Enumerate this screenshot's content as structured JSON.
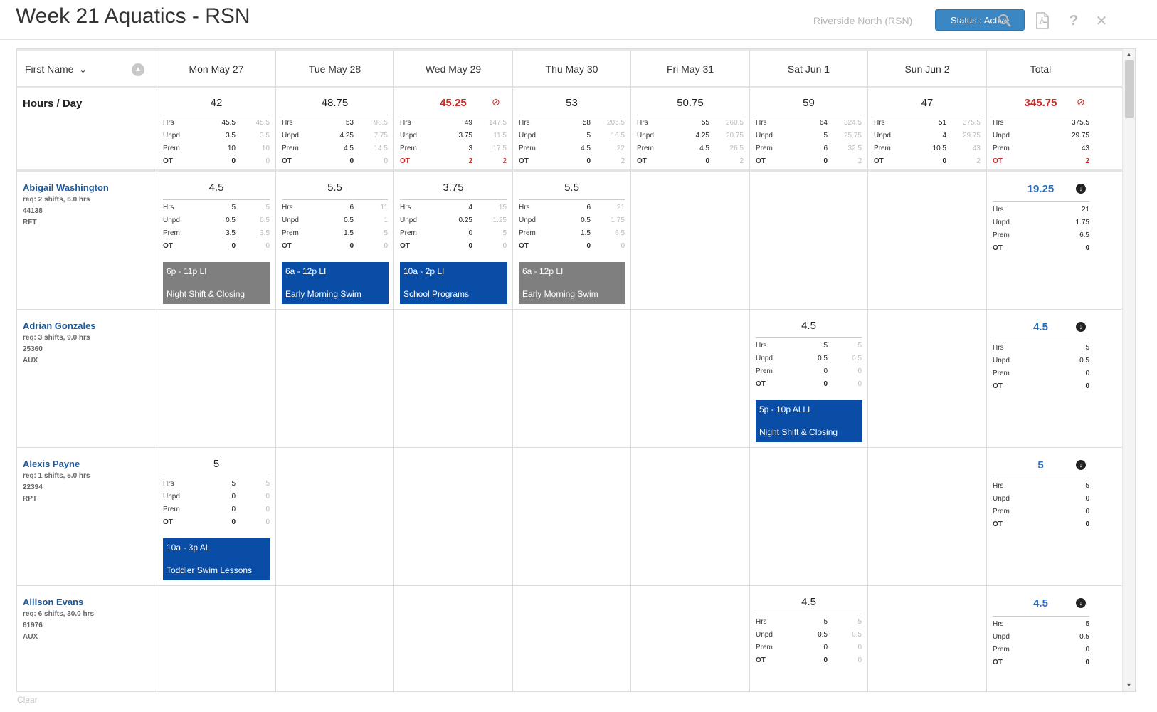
{
  "header": {
    "title": "Week 21 Aquatics - RSN",
    "location": "Riverside North (RSN)",
    "status_label": "Status : Active"
  },
  "columns": {
    "first_name": "First Name",
    "days": [
      "Mon May 27",
      "Tue May 28",
      "Wed May 29",
      "Thu May 30",
      "Fri May 31",
      "Sat Jun 1",
      "Sun Jun 2"
    ],
    "total": "Total"
  },
  "stat_labels": {
    "hrs": "Hrs",
    "unpd": "Unpd",
    "prem": "Prem",
    "ot": "OT"
  },
  "hours_day": {
    "label": "Hours / Day",
    "days": [
      {
        "total": "42",
        "hrs": [
          "45.5",
          "45.5"
        ],
        "unpd": [
          "3.5",
          "3.5"
        ],
        "prem": [
          "10",
          "10"
        ],
        "ot": [
          "0",
          "0"
        ]
      },
      {
        "total": "48.75",
        "hrs": [
          "53",
          "98.5"
        ],
        "unpd": [
          "4.25",
          "7.75"
        ],
        "prem": [
          "4.5",
          "14.5"
        ],
        "ot": [
          "0",
          "0"
        ]
      },
      {
        "total": "45.25",
        "warn": true,
        "hrs": [
          "49",
          "147.5"
        ],
        "unpd": [
          "3.75",
          "11.5"
        ],
        "prem": [
          "3",
          "17.5"
        ],
        "ot": [
          "2",
          "2"
        ]
      },
      {
        "total": "53",
        "hrs": [
          "58",
          "205.5"
        ],
        "unpd": [
          "5",
          "16.5"
        ],
        "prem": [
          "4.5",
          "22"
        ],
        "ot": [
          "0",
          "2"
        ]
      },
      {
        "total": "50.75",
        "hrs": [
          "55",
          "260.5"
        ],
        "unpd": [
          "4.25",
          "20.75"
        ],
        "prem": [
          "4.5",
          "26.5"
        ],
        "ot": [
          "0",
          "2"
        ]
      },
      {
        "total": "59",
        "hrs": [
          "64",
          "324.5"
        ],
        "unpd": [
          "5",
          "25.75"
        ],
        "prem": [
          "6",
          "32.5"
        ],
        "ot": [
          "0",
          "2"
        ]
      },
      {
        "total": "47",
        "hrs": [
          "51",
          "375.5"
        ],
        "unpd": [
          "4",
          "29.75"
        ],
        "prem": [
          "10.5",
          "43"
        ],
        "ot": [
          "0",
          "2"
        ]
      }
    ],
    "total": {
      "total": "345.75",
      "hrs": "375.5",
      "unpd": "29.75",
      "prem": "43",
      "ot": "2"
    }
  },
  "employees": [
    {
      "name": "Abigail Washington",
      "req": "req: 2 shifts, 6.0 hrs",
      "id": "44138",
      "type": "RFT",
      "total": {
        "total": "19.25",
        "hrs": "21",
        "unpd": "1.75",
        "prem": "6.5",
        "ot": "0"
      },
      "days": [
        {
          "total": "4.5",
          "hrs": [
            "5",
            "5"
          ],
          "unpd": [
            "0.5",
            "0.5"
          ],
          "prem": [
            "3.5",
            "3.5"
          ],
          "ot": [
            "0",
            "0"
          ],
          "shift": {
            "time": "6p - 11p LI",
            "name": "Night Shift & Closing",
            "color": "gray"
          }
        },
        {
          "total": "5.5",
          "hrs": [
            "6",
            "11"
          ],
          "unpd": [
            "0.5",
            "1"
          ],
          "prem": [
            "1.5",
            "5"
          ],
          "ot": [
            "0",
            "0"
          ],
          "shift": {
            "time": "6a - 12p LI",
            "name": "Early Morning Swim",
            "color": "blue"
          }
        },
        {
          "total": "3.75",
          "hrs": [
            "4",
            "15"
          ],
          "unpd": [
            "0.25",
            "1.25"
          ],
          "prem": [
            "0",
            "5"
          ],
          "ot": [
            "0",
            "0"
          ],
          "shift": {
            "time": "10a - 2p LI",
            "name": "School Programs",
            "color": "blue"
          }
        },
        {
          "total": "5.5",
          "hrs": [
            "6",
            "21"
          ],
          "unpd": [
            "0.5",
            "1.75"
          ],
          "prem": [
            "1.5",
            "6.5"
          ],
          "ot": [
            "0",
            "0"
          ],
          "shift": {
            "time": "6a - 12p LI",
            "name": "Early Morning Swim",
            "color": "gray"
          }
        },
        null,
        null,
        null
      ]
    },
    {
      "name": "Adrian Gonzales",
      "req": "req: 3 shifts, 9.0 hrs",
      "id": "25360",
      "type": "AUX",
      "total": {
        "total": "4.5",
        "hrs": "5",
        "unpd": "0.5",
        "prem": "0",
        "ot": "0"
      },
      "days": [
        null,
        null,
        null,
        null,
        null,
        {
          "total": "4.5",
          "hrs": [
            "5",
            "5"
          ],
          "unpd": [
            "0.5",
            "0.5"
          ],
          "prem": [
            "0",
            "0"
          ],
          "ot": [
            "0",
            "0"
          ],
          "shift": {
            "time": "5p - 10p ALLI",
            "name": "Night Shift & Closing",
            "color": "blue"
          }
        },
        null
      ]
    },
    {
      "name": "Alexis Payne",
      "req": "req: 1 shifts, 5.0 hrs",
      "id": "22394",
      "type": "RPT",
      "total": {
        "total": "5",
        "hrs": "5",
        "unpd": "0",
        "prem": "0",
        "ot": "0"
      },
      "days": [
        {
          "total": "5",
          "hrs": [
            "5",
            "5"
          ],
          "unpd": [
            "0",
            "0"
          ],
          "prem": [
            "0",
            "0"
          ],
          "ot": [
            "0",
            "0"
          ],
          "shift": {
            "time": "10a - 3p AL",
            "name": "Toddler Swim Lessons",
            "color": "blue"
          }
        },
        null,
        null,
        null,
        null,
        null,
        null
      ]
    },
    {
      "name": "Allison Evans",
      "req": "req: 6 shifts, 30.0 hrs",
      "id": "61976",
      "type": "AUX",
      "total": {
        "total": "4.5",
        "hrs": "5",
        "unpd": "0.5",
        "prem": "0",
        "ot": "0"
      },
      "days": [
        null,
        null,
        null,
        null,
        null,
        {
          "total": "4.5",
          "hrs": [
            "5",
            "5"
          ],
          "unpd": [
            "0.5",
            "0.5"
          ],
          "prem": [
            "0",
            "0"
          ],
          "ot": [
            "0",
            "0"
          ]
        },
        null
      ]
    }
  ],
  "footer": {
    "clear": "Clear"
  },
  "icons": {
    "search": "search-icon",
    "pdf": "pdf-icon",
    "help": "help-icon",
    "close": "close-icon"
  },
  "colors": {
    "shift_blue": "#0a4da6",
    "shift_gray": "#7f7f7f",
    "status_blue": "#3a87c4",
    "alert_red": "#cc2b2b",
    "link_blue": "#1e5a9a"
  }
}
